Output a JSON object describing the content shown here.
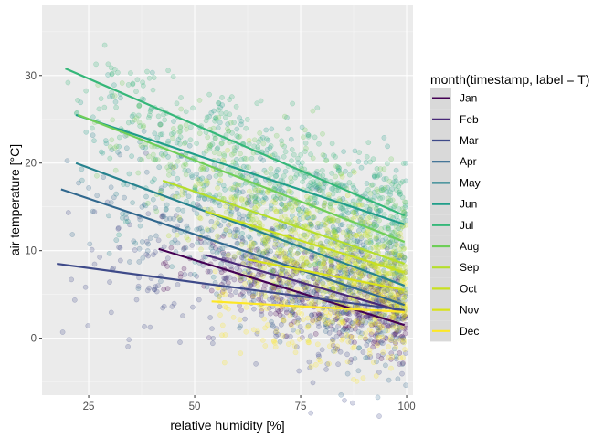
{
  "chart_data": {
    "type": "scatter",
    "xlabel": "relative humidity [%]",
    "ylabel": "air temperature [°C]",
    "xlim": [
      14,
      101.5
    ],
    "ylim": [
      -6.5,
      38
    ],
    "xticks": [
      25,
      50,
      75,
      100
    ],
    "yticks": [
      0,
      10,
      20,
      30
    ],
    "grid": true,
    "panel_background": "#ebebeb",
    "legend": {
      "title": "month(timestamp, label = T)",
      "placement": "right"
    },
    "series": [
      {
        "name": "Jan",
        "color": "#440154",
        "fit": {
          "x": [
            41.5,
            99.5
          ],
          "y": [
            10.2,
            1.5
          ]
        },
        "cloud": {
          "x": [
            40,
            100
          ],
          "yc": [
            9.5,
            2.0
          ],
          "spread": 2.2,
          "n": 220
        }
      },
      {
        "name": "Feb",
        "color": "#482878",
        "fit": {
          "x": [
            52.5,
            99.5
          ],
          "y": [
            9.5,
            3.0
          ]
        },
        "cloud": {
          "x": [
            50,
            100
          ],
          "yc": [
            8.8,
            3.0
          ],
          "spread": 2.4,
          "n": 220
        }
      },
      {
        "name": "Mar",
        "color": "#3e4a89",
        "fit": {
          "x": [
            17.5,
            99.5
          ],
          "y": [
            8.5,
            3.2
          ]
        },
        "cloud": {
          "x": [
            17,
            100
          ],
          "yc": [
            9.0,
            2.5
          ],
          "spread": 4.5,
          "n": 300
        }
      },
      {
        "name": "Apr",
        "color": "#31688e",
        "fit": {
          "x": [
            18.5,
            99.5
          ],
          "y": [
            17.0,
            3.8
          ]
        },
        "cloud": {
          "x": [
            18,
            100
          ],
          "yc": [
            16.5,
            4.0
          ],
          "spread": 4.5,
          "n": 300
        }
      },
      {
        "name": "May",
        "color": "#26828e",
        "fit": {
          "x": [
            22.0,
            99.5
          ],
          "y": [
            20.0,
            6.0
          ]
        },
        "cloud": {
          "x": [
            21,
            100
          ],
          "yc": [
            20.0,
            6.0
          ],
          "spread": 3.8,
          "n": 300
        }
      },
      {
        "name": "Jun",
        "color": "#1f9e89",
        "fit": {
          "x": [
            22.0,
            99.5
          ],
          "y": [
            25.5,
            13.0
          ]
        },
        "cloud": {
          "x": [
            22,
            100
          ],
          "yc": [
            25.0,
            13.0
          ],
          "spread": 3.5,
          "n": 300
        }
      },
      {
        "name": "Jul",
        "color": "#35b779",
        "fit": {
          "x": [
            19.5,
            99.5
          ],
          "y": [
            30.8,
            14.0
          ]
        },
        "cloud": {
          "x": [
            19,
            100
          ],
          "yc": [
            30.0,
            14.0
          ],
          "spread": 3.0,
          "n": 300
        }
      },
      {
        "name": "Aug",
        "color": "#6ece58",
        "fit": {
          "x": [
            22.5,
            99.5
          ],
          "y": [
            25.5,
            11.0
          ]
        },
        "cloud": {
          "x": [
            22,
            100
          ],
          "yc": [
            25.0,
            11.0
          ],
          "spread": 3.5,
          "n": 300
        }
      },
      {
        "name": "Sep",
        "color": "#b5de2b",
        "fit": {
          "x": [
            42.5,
            99.5
          ],
          "y": [
            18.0,
            8.5
          ]
        },
        "cloud": {
          "x": [
            40,
            100
          ],
          "yc": [
            18.0,
            8.5
          ],
          "spread": 3.0,
          "n": 240
        }
      },
      {
        "name": "Oct",
        "color": "#c8e020",
        "fit": {
          "x": [
            52.5,
            99.5
          ],
          "y": [
            14.5,
            7.5
          ]
        },
        "cloud": {
          "x": [
            50,
            100
          ],
          "yc": [
            14.0,
            7.0
          ],
          "spread": 2.8,
          "n": 220
        }
      },
      {
        "name": "Nov",
        "color": "#d8e219",
        "fit": {
          "x": [
            62.5,
            99.5
          ],
          "y": [
            9.0,
            5.5
          ]
        },
        "cloud": {
          "x": [
            60,
            100
          ],
          "yc": [
            8.5,
            5.0
          ],
          "spread": 2.6,
          "n": 200
        }
      },
      {
        "name": "Dec",
        "color": "#fde725",
        "fit": {
          "x": [
            54.0,
            99.5
          ],
          "y": [
            4.2,
            3.0
          ]
        },
        "cloud": {
          "x": [
            52,
            100
          ],
          "yc": [
            3.5,
            1.5
          ],
          "spread": 2.8,
          "n": 220
        }
      }
    ]
  }
}
